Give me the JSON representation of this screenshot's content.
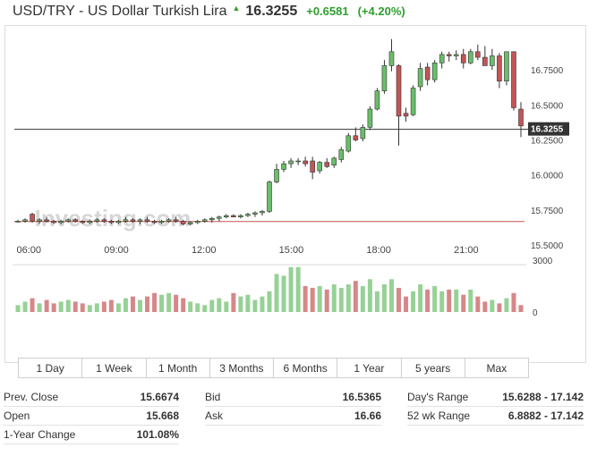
{
  "header": {
    "title": "USD/TRY - US Dollar Turkish Lira",
    "price": "16.3255",
    "change": "+0.6581",
    "change_pct": "(+4.20%)",
    "up_color": "#2e9e2e"
  },
  "watermark": "Investing.com",
  "ranges": [
    "1 Day",
    "1 Week",
    "1 Month",
    "3 Months",
    "6 Months",
    "1 Year",
    "5 years",
    "Max"
  ],
  "stats": [
    {
      "label": "Prev. Close",
      "value": "15.6674"
    },
    {
      "label": "Open",
      "value": "15.668"
    },
    {
      "label": "1-Year Change",
      "value": "101.08%"
    },
    {
      "label": "Bid",
      "value": "16.5365"
    },
    {
      "label": "Ask",
      "value": "16.66"
    },
    {
      "label": "Day's Range",
      "value": "15.6288 - 17.142"
    },
    {
      "label": "52 wk Range",
      "value": "6.8882 - 17.142"
    }
  ],
  "chart_data": {
    "type": "candlestick",
    "price_axis": {
      "min": 15.5,
      "max": 17.0,
      "ticks": [
        "15.5000",
        "15.7500",
        "16.0000",
        "16.2500",
        "16.5000",
        "16.7500"
      ]
    },
    "time_axis": {
      "start_hour": 5.5,
      "end_hour": 23.0,
      "tick_labels": [
        "06:00",
        "09:00",
        "12:00",
        "15:00",
        "18:00",
        "21:00"
      ],
      "tick_hours": [
        6,
        9,
        12,
        15,
        18,
        21
      ]
    },
    "current_price": 16.3255,
    "current_price_label": "16.3255",
    "prev_close": 15.6674,
    "volume_axis": {
      "max": 3000,
      "ticks": [
        "0",
        "3000"
      ]
    },
    "up_color": "#6abe6a",
    "down_color": "#c45456",
    "candles": [
      [
        15.67,
        15.68,
        15.66,
        15.67,
        400
      ],
      [
        15.67,
        15.69,
        15.66,
        15.68,
        600
      ],
      [
        15.72,
        15.73,
        15.66,
        15.67,
        800
      ],
      [
        15.67,
        15.69,
        15.65,
        15.68,
        500
      ],
      [
        15.68,
        15.7,
        15.66,
        15.67,
        700
      ],
      [
        15.67,
        15.68,
        15.65,
        15.66,
        500
      ],
      [
        15.66,
        15.68,
        15.65,
        15.67,
        600
      ],
      [
        15.67,
        15.69,
        15.66,
        15.68,
        700
      ],
      [
        15.68,
        15.69,
        15.66,
        15.67,
        600
      ],
      [
        15.67,
        15.68,
        15.65,
        15.66,
        500
      ],
      [
        15.66,
        15.68,
        15.65,
        15.67,
        400
      ],
      [
        15.67,
        15.69,
        15.66,
        15.68,
        500
      ],
      [
        15.68,
        15.69,
        15.66,
        15.67,
        600
      ],
      [
        15.67,
        15.68,
        15.65,
        15.66,
        700
      ],
      [
        15.66,
        15.68,
        15.65,
        15.67,
        500
      ],
      [
        15.67,
        15.7,
        15.66,
        15.68,
        800
      ],
      [
        15.68,
        15.69,
        15.66,
        15.67,
        900
      ],
      [
        15.67,
        15.69,
        15.65,
        15.68,
        700
      ],
      [
        15.68,
        15.7,
        15.66,
        15.67,
        900
      ],
      [
        15.67,
        15.68,
        15.65,
        15.66,
        1100
      ],
      [
        15.66,
        15.68,
        15.65,
        15.67,
        1000
      ],
      [
        15.67,
        15.69,
        15.66,
        15.68,
        1100
      ],
      [
        15.68,
        15.7,
        15.66,
        15.67,
        1000
      ],
      [
        15.67,
        15.68,
        15.64,
        15.65,
        800
      ],
      [
        15.65,
        15.67,
        15.64,
        15.66,
        600
      ],
      [
        15.66,
        15.68,
        15.65,
        15.67,
        500
      ],
      [
        15.67,
        15.69,
        15.66,
        15.68,
        400
      ],
      [
        15.68,
        15.7,
        15.66,
        15.69,
        700
      ],
      [
        15.69,
        15.71,
        15.67,
        15.7,
        800
      ],
      [
        15.7,
        15.72,
        15.69,
        15.71,
        600
      ],
      [
        15.71,
        15.72,
        15.7,
        15.7,
        1100
      ],
      [
        15.7,
        15.72,
        15.69,
        15.71,
        900
      ],
      [
        15.71,
        15.73,
        15.7,
        15.72,
        1000
      ],
      [
        15.72,
        15.74,
        15.7,
        15.73,
        700
      ],
      [
        15.73,
        15.75,
        15.71,
        15.74,
        900
      ],
      [
        15.74,
        15.96,
        15.73,
        15.95,
        1200
      ],
      [
        15.95,
        16.08,
        15.94,
        16.04,
        2200
      ],
      [
        16.04,
        16.1,
        16.02,
        16.08,
        2100
      ],
      [
        16.08,
        16.12,
        16.05,
        16.1,
        2600
      ],
      [
        16.1,
        16.12,
        16.07,
        16.1,
        2600
      ],
      [
        16.1,
        16.13,
        16.06,
        16.08,
        1500
      ],
      [
        16.1,
        16.13,
        15.97,
        16.02,
        1400
      ],
      [
        16.03,
        16.1,
        16.01,
        16.09,
        1500
      ],
      [
        16.09,
        16.12,
        16.05,
        16.06,
        1300
      ],
      [
        16.07,
        16.13,
        16.05,
        16.12,
        1600
      ],
      [
        16.11,
        16.2,
        16.09,
        16.18,
        1400
      ],
      [
        16.17,
        16.3,
        16.16,
        16.28,
        1600
      ],
      [
        16.28,
        16.34,
        16.24,
        16.25,
        1800
      ],
      [
        16.26,
        16.36,
        16.24,
        16.34,
        1500
      ],
      [
        16.34,
        16.49,
        16.32,
        16.47,
        1900
      ],
      [
        16.47,
        16.62,
        16.46,
        16.6,
        1200
      ],
      [
        16.6,
        16.82,
        16.58,
        16.78,
        1600
      ],
      [
        16.78,
        16.97,
        16.74,
        16.88,
        1900
      ],
      [
        16.78,
        16.79,
        16.21,
        16.42,
        1400
      ],
      [
        16.44,
        16.48,
        16.38,
        16.42,
        900
      ],
      [
        16.43,
        16.64,
        16.42,
        16.62,
        1200
      ],
      [
        16.63,
        16.8,
        16.6,
        16.76,
        1600
      ],
      [
        16.77,
        16.8,
        16.64,
        16.68,
        1300
      ],
      [
        16.68,
        16.82,
        16.66,
        16.8,
        1500
      ],
      [
        16.8,
        16.88,
        16.76,
        16.86,
        1200
      ],
      [
        16.86,
        16.88,
        16.81,
        16.85,
        1300
      ],
      [
        16.85,
        16.89,
        16.82,
        16.86,
        1300
      ],
      [
        16.86,
        16.9,
        16.76,
        16.8,
        1000
      ],
      [
        16.8,
        16.9,
        16.79,
        16.88,
        1300
      ],
      [
        16.88,
        16.93,
        16.82,
        16.84,
        900
      ],
      [
        16.84,
        16.92,
        16.79,
        16.78,
        600
      ],
      [
        16.78,
        16.9,
        16.75,
        16.85,
        700
      ],
      [
        16.85,
        16.87,
        16.62,
        16.67,
        500
      ],
      [
        16.67,
        16.88,
        16.64,
        16.88,
        800
      ],
      [
        16.88,
        16.88,
        16.46,
        16.48,
        1100
      ],
      [
        16.47,
        16.52,
        16.27,
        16.35,
        400
      ]
    ]
  }
}
